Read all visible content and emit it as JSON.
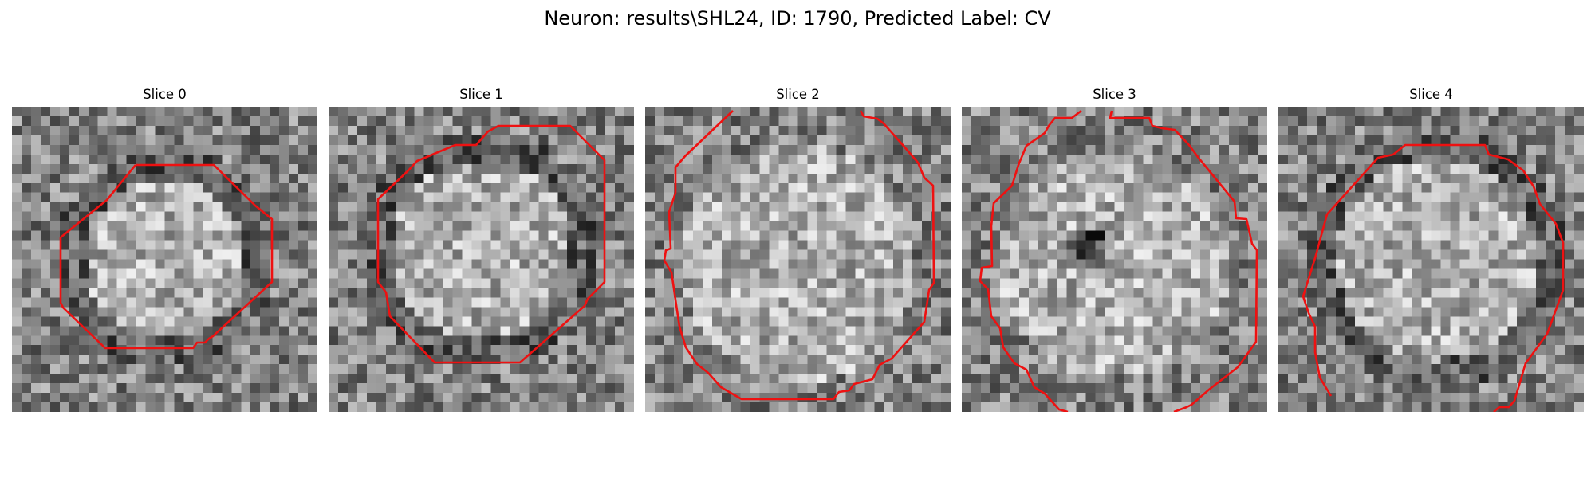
{
  "figure": {
    "title": "Neuron: results\\SHL24, ID: 1790, Predicted Label: CV"
  },
  "panels": [
    {
      "title": "Slice 0",
      "contour_color": "#ee1111"
    },
    {
      "title": "Slice 1",
      "contour_color": "#ee1111"
    },
    {
      "title": "Slice 2",
      "contour_color": "#ee1111"
    },
    {
      "title": "Slice 3",
      "contour_color": "#ee1111"
    },
    {
      "title": "Slice 4",
      "contour_color": "#ee1111"
    }
  ]
}
